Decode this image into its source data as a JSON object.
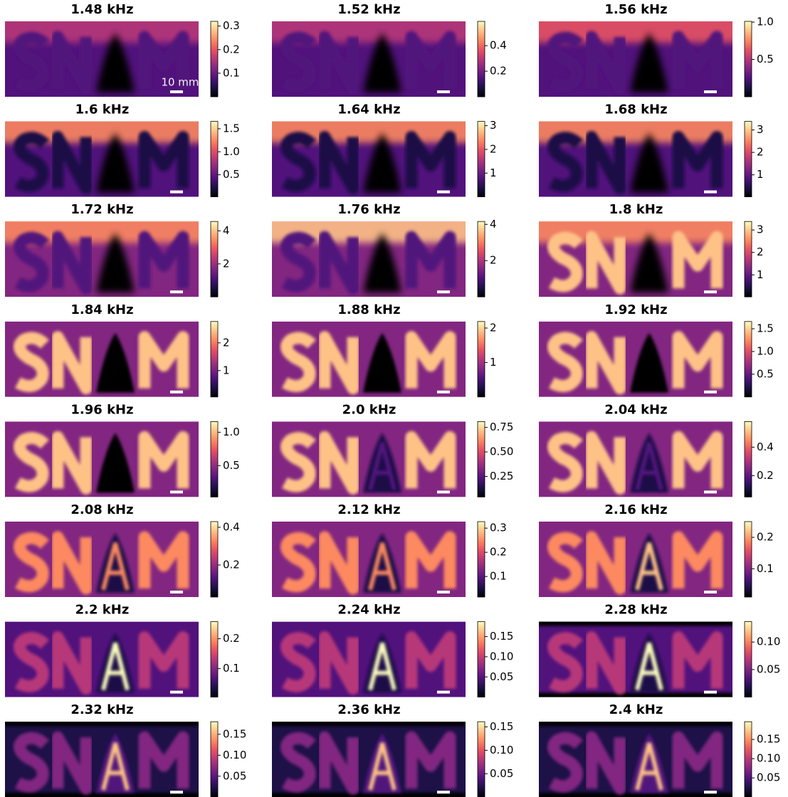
{
  "colormap": [
    "#000004",
    "#1d1147",
    "#51127c",
    "#822681",
    "#b73779",
    "#e75263",
    "#fc8961",
    "#fec287",
    "#fcfdbf"
  ],
  "chart_data": [
    {
      "type": "heatmap",
      "title": "1.48 kHz",
      "clim": [
        0.0,
        0.32
      ],
      "cticks": [
        0.1,
        0.2,
        0.3
      ],
      "annotation": "10 mm"
    },
    {
      "type": "heatmap",
      "title": "1.52 kHz",
      "clim": [
        0.0,
        0.59
      ],
      "cticks": [
        0.2,
        0.4
      ]
    },
    {
      "type": "heatmap",
      "title": "1.56 kHz",
      "clim": [
        0.0,
        1.01
      ],
      "cticks": [
        0.5,
        {
          "value": 1,
          "label": "1.0"
        }
      ]
    },
    {
      "type": "heatmap",
      "title": "1.6 kHz",
      "clim": [
        0.02,
        1.66
      ],
      "cticks": [
        0.5,
        {
          "value": 1,
          "label": "1.0"
        },
        1.5
      ]
    },
    {
      "type": "heatmap",
      "title": "1.64 kHz",
      "clim": [
        0.0,
        3.18
      ],
      "cticks": [
        1,
        2,
        3
      ]
    },
    {
      "type": "heatmap",
      "title": "1.68 kHz",
      "clim": [
        0.02,
        3.38
      ],
      "cticks": [
        1,
        2,
        3
      ]
    },
    {
      "type": "heatmap",
      "title": "1.72 kHz",
      "clim": [
        0.0,
        4.57
      ],
      "cticks": [
        2,
        4
      ]
    },
    {
      "type": "heatmap",
      "title": "1.76 kHz",
      "clim": [
        0.0,
        4.16
      ],
      "cticks": [
        2,
        4
      ]
    },
    {
      "type": "heatmap",
      "title": "1.8 kHz",
      "clim": [
        0.02,
        3.38
      ],
      "cticks": [
        1,
        2,
        3
      ]
    },
    {
      "type": "heatmap",
      "title": "1.84 kHz",
      "clim": [
        0.05,
        2.77
      ],
      "cticks": [
        1,
        2
      ]
    },
    {
      "type": "heatmap",
      "title": "1.88 kHz",
      "clim": [
        0.0,
        2.19
      ],
      "cticks": [
        1,
        2
      ]
    },
    {
      "type": "heatmap",
      "title": "1.92 kHz",
      "clim": [
        0.0,
        1.66
      ],
      "cticks": [
        0.5,
        {
          "value": 1,
          "label": "1.0"
        },
        1.5
      ]
    },
    {
      "type": "heatmap",
      "title": "1.96 kHz",
      "clim": [
        0.03,
        1.16
      ],
      "cticks": [
        0.5,
        {
          "value": 1,
          "label": "1.0"
        }
      ]
    },
    {
      "type": "heatmap",
      "title": "2.0 kHz",
      "clim": [
        0.04,
        0.81
      ],
      "cticks": [
        0.25,
        {
          "value": 0.5,
          "label": "0.50"
        },
        0.75
      ]
    },
    {
      "type": "heatmap",
      "title": "2.04 kHz",
      "clim": [
        0.05,
        0.58
      ],
      "cticks": [
        0.2,
        0.4
      ]
    },
    {
      "type": "heatmap",
      "title": "2.08 kHz",
      "clim": [
        0.03,
        0.43
      ],
      "cticks": [
        0.2,
        0.4
      ]
    },
    {
      "type": "heatmap",
      "title": "2.12 kHz",
      "clim": [
        0.015,
        0.327
      ],
      "cticks": [
        0.1,
        0.2,
        0.3
      ]
    },
    {
      "type": "heatmap",
      "title": "2.16 kHz",
      "clim": [
        0.01,
        0.25
      ],
      "cticks": [
        0.1,
        0.2
      ]
    },
    {
      "type": "heatmap",
      "title": "2.2 kHz",
      "clim": [
        0.005,
        0.257
      ],
      "cticks": [
        0.1,
        0.2
      ]
    },
    {
      "type": "heatmap",
      "title": "2.24 kHz",
      "clim": [
        0.0,
        0.187
      ],
      "cticks": [
        0.05,
        {
          "value": 0.1,
          "label": "0.10"
        },
        0.15
      ]
    },
    {
      "type": "heatmap",
      "title": "2.28 kHz",
      "clim": [
        0.0,
        0.137
      ],
      "cticks": [
        0.05,
        {
          "value": 0.1,
          "label": "0.10"
        }
      ]
    },
    {
      "type": "heatmap",
      "title": "2.32 kHz",
      "clim": [
        0.0,
        0.18
      ],
      "cticks": [
        0.05,
        {
          "value": 0.1,
          "label": "0.10"
        },
        0.15
      ]
    },
    {
      "type": "heatmap",
      "title": "2.36 kHz",
      "clim": [
        0.0,
        0.161
      ],
      "cticks": [
        0.05,
        {
          "value": 0.1,
          "label": "0.10"
        },
        0.15
      ]
    },
    {
      "type": "heatmap",
      "title": "2.4 kHz",
      "clim": [
        0.0,
        0.196
      ],
      "cticks": [
        0.05,
        {
          "value": 0.1,
          "label": "0.10"
        },
        0.15
      ]
    }
  ]
}
